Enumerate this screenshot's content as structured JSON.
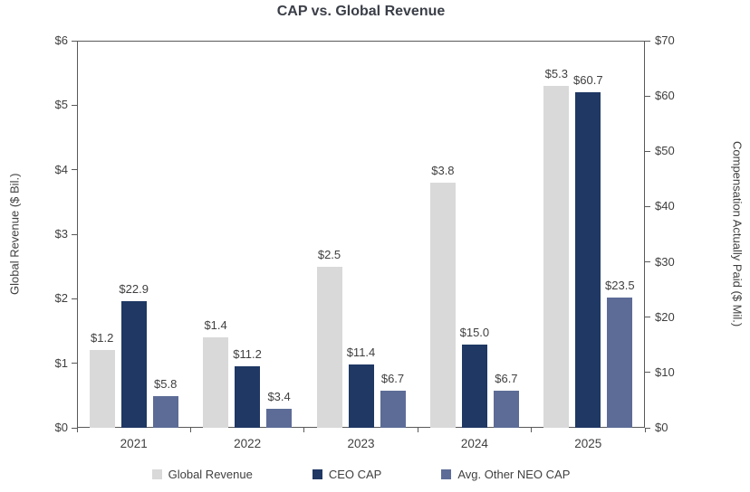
{
  "chart_data": {
    "type": "bar",
    "title": "CAP vs. Global Revenue",
    "categories": [
      "2021",
      "2022",
      "2023",
      "2024",
      "2025"
    ],
    "left_axis": {
      "label": "Global Revenue ($ Bil.)",
      "min": 0,
      "max": 6,
      "ticks": [
        "$0",
        "$1",
        "$2",
        "$3",
        "$4",
        "$5",
        "$6"
      ]
    },
    "right_axis": {
      "label": "Compensation Actually Paid ($ Mil.)",
      "min": 0,
      "max": 70,
      "ticks": [
        "$0",
        "$10",
        "$20",
        "$30",
        "$40",
        "$50",
        "$60",
        "$70"
      ]
    },
    "series": [
      {
        "name": "Global Revenue",
        "axis": "left",
        "color": "#d9d9d9",
        "values": [
          1.2,
          1.4,
          2.5,
          3.8,
          5.3
        ],
        "labels": [
          "$1.2",
          "$1.4",
          "$2.5",
          "$3.8",
          "$5.3"
        ]
      },
      {
        "name": "CEO CAP",
        "axis": "right",
        "color": "#1f3864",
        "values": [
          22.9,
          11.2,
          11.4,
          15.0,
          60.7
        ],
        "labels": [
          "$22.9",
          "$11.2",
          "$11.4",
          "$15.0",
          "$60.7"
        ]
      },
      {
        "name": "Avg. Other NEO CAP",
        "axis": "right",
        "color": "#5d6c97",
        "values": [
          5.8,
          3.4,
          6.7,
          6.7,
          23.5
        ],
        "labels": [
          "$5.8",
          "$3.4",
          "$6.7",
          "$6.7",
          "$23.5"
        ]
      }
    ],
    "legend_position": "bottom",
    "grid": false
  }
}
